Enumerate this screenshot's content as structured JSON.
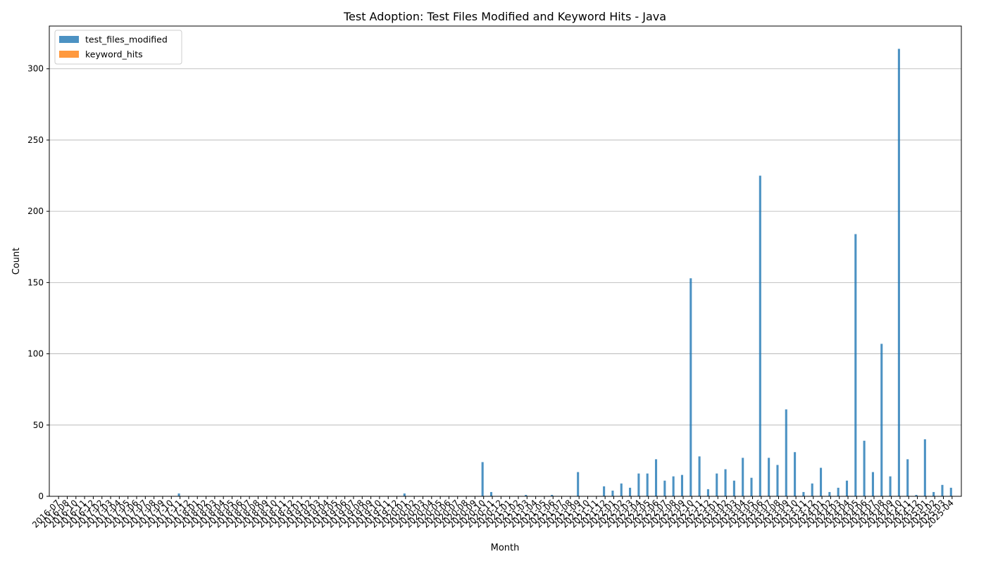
{
  "chart_data": {
    "type": "bar",
    "title": "Test Adoption: Test Files Modified and Keyword Hits - Java",
    "xlabel": "Month",
    "ylabel": "Count",
    "ylim": [
      0,
      330
    ],
    "yticks": [
      0,
      50,
      100,
      150,
      200,
      250,
      300
    ],
    "grid": "y",
    "legend": "top-left",
    "categories": [
      "2016-07",
      "2016-08",
      "2016-10",
      "2016-11",
      "2016-12",
      "2017-02",
      "2017-03",
      "2017-04",
      "2017-05",
      "2017-06",
      "2017-07",
      "2017-08",
      "2017-09",
      "2017-10",
      "2017-11",
      "2017-12",
      "2018-01",
      "2018-02",
      "2018-03",
      "2018-04",
      "2018-05",
      "2018-06",
      "2018-07",
      "2018-08",
      "2018-09",
      "2018-10",
      "2018-11",
      "2018-12",
      "2019-01",
      "2019-02",
      "2019-03",
      "2019-04",
      "2019-05",
      "2019-06",
      "2019-07",
      "2019-08",
      "2019-09",
      "2019-10",
      "2019-11",
      "2019-12",
      "2020-01",
      "2020-02",
      "2020-03",
      "2020-04",
      "2020-05",
      "2020-06",
      "2020-07",
      "2020-08",
      "2020-09",
      "2020-10",
      "2020-11",
      "2020-12",
      "2021-01",
      "2021-02",
      "2021-03",
      "2021-04",
      "2021-05",
      "2021-06",
      "2021-07",
      "2021-08",
      "2021-09",
      "2021-10",
      "2021-11",
      "2021-12",
      "2022-01",
      "2022-02",
      "2022-03",
      "2022-04",
      "2022-05",
      "2022-06",
      "2022-07",
      "2022-08",
      "2022-09",
      "2022-10",
      "2022-11",
      "2022-12",
      "2023-01",
      "2023-02",
      "2023-03",
      "2023-04",
      "2023-05",
      "2023-06",
      "2023-07",
      "2023-08",
      "2023-09",
      "2023-10",
      "2023-11",
      "2023-12",
      "2024-01",
      "2024-02",
      "2024-03",
      "2024-04",
      "2024-05",
      "2024-06",
      "2024-07",
      "2024-08",
      "2024-09",
      "2024-10",
      "2024-11",
      "2024-12",
      "2025-01",
      "2025-02",
      "2025-03",
      "2025-04"
    ],
    "series": [
      {
        "name": "test_files_modified",
        "color": "#1f77b4",
        "values": [
          0,
          0,
          0,
          0,
          0,
          0,
          0,
          0,
          0,
          0,
          0,
          0,
          0,
          0,
          2,
          0,
          0,
          0,
          0,
          0,
          0,
          0,
          0,
          0,
          0,
          0,
          0,
          0,
          0,
          0,
          0,
          0,
          0,
          0,
          0,
          0,
          0,
          0,
          0,
          0,
          2,
          0,
          0,
          0,
          0,
          0,
          0,
          0,
          0,
          24,
          3,
          0,
          0,
          0,
          1,
          0,
          0,
          1,
          0,
          0,
          17,
          0,
          0,
          7,
          4,
          9,
          6,
          16,
          16,
          26,
          11,
          14,
          15,
          153,
          28,
          5,
          16,
          19,
          11,
          27,
          13,
          225,
          27,
          22,
          61,
          31,
          3,
          9,
          20,
          3,
          6,
          11,
          184,
          39,
          17,
          107,
          14,
          314,
          26,
          1,
          40,
          3,
          8,
          6
        ]
      },
      {
        "name": "keyword_hits",
        "color": "#ff7f0e",
        "values": [
          0,
          0,
          0,
          0,
          0,
          0,
          0,
          0,
          0,
          0,
          0,
          0,
          0,
          0,
          0,
          0,
          0,
          0,
          0,
          0,
          0,
          0,
          0,
          0,
          0,
          0,
          0,
          0,
          0,
          0,
          0,
          0,
          0,
          0,
          0,
          0,
          0,
          0,
          0,
          0,
          0,
          0,
          0,
          0,
          0,
          0,
          0,
          0,
          0,
          0,
          0,
          0,
          0,
          0,
          0,
          0,
          0,
          0,
          0,
          0,
          0,
          0,
          0,
          0,
          0,
          0,
          0,
          0,
          0,
          0,
          0,
          0,
          0,
          0,
          0,
          0,
          0,
          0,
          0,
          0,
          0,
          0,
          0,
          0,
          0,
          0,
          0,
          0,
          0,
          0,
          0,
          0,
          0,
          0,
          0,
          0,
          0,
          0,
          0,
          0,
          0,
          0,
          0,
          0
        ]
      }
    ]
  }
}
